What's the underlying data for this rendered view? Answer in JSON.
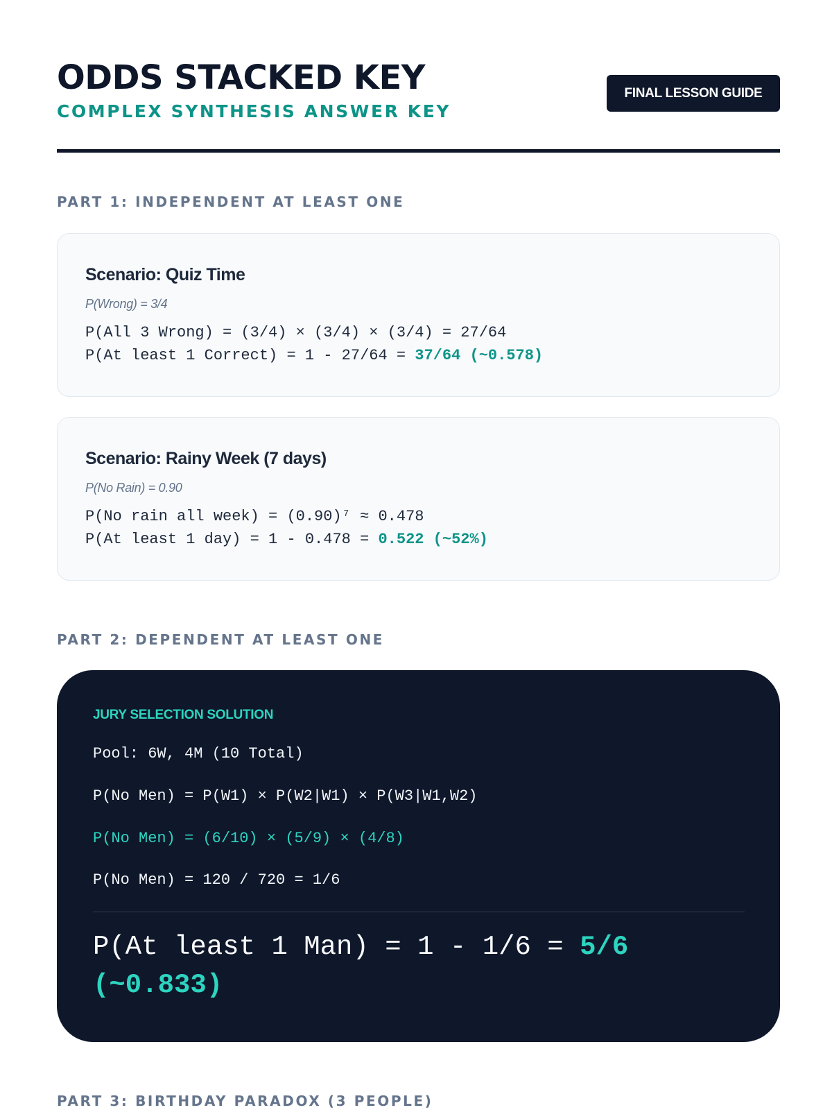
{
  "header": {
    "title": "ODDS STACKED KEY",
    "subtitle": "COMPLEX SYNTHESIS ANSWER KEY",
    "badge": "FINAL LESSON GUIDE"
  },
  "part1": {
    "heading": "PART 1: INDEPENDENT AT LEAST ONE",
    "cards": [
      {
        "title": "Scenario: Quiz Time",
        "given": "P(Wrong) = 3/4",
        "line1": "P(All 3 Wrong) = (3/4) × (3/4) × (3/4) = 27/64",
        "line2_prefix": "P(At least 1 Correct) = 1 - 27/64 = ",
        "line2_answer": "37/64 (~0.578)"
      },
      {
        "title": "Scenario: Rainy Week (7 days)",
        "given": "P(No Rain) = 0.90",
        "line1": "P(No rain all week) = (0.90)⁷ ≈ 0.478",
        "line2_prefix": "P(At least 1 day) = 1 - 0.478 = ",
        "line2_answer": "0.522 (~52%)"
      }
    ]
  },
  "part2": {
    "heading": "PART 2: DEPENDENT AT LEAST ONE",
    "label": "JURY SELECTION SOLUTION",
    "lines": [
      "Pool: 6W, 4M (10 Total)",
      "P(No Men) = P(W1) × P(W2|W1) × P(W3|W1,W2)",
      "P(No Men) = (6/10) × (5/9) × (4/8)",
      "P(No Men) = 120 / 720 = 1/6"
    ],
    "final_prefix": "P(At least 1 Man) = 1 - 1/6 = ",
    "final_answer": "5/6 (~0.833)"
  },
  "part3": {
    "heading": "PART 3: BIRTHDAY PARADOX (3 PEOPLE)"
  },
  "colors": {
    "navy": "#0f172a",
    "teal": "#0d9488",
    "teal_bright": "#2dd4bf",
    "muted": "#64748b"
  }
}
